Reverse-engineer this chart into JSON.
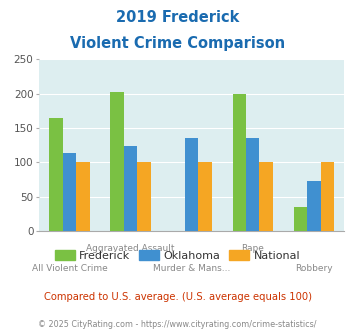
{
  "title_line1": "2019 Frederick",
  "title_line2": "Violent Crime Comparison",
  "categories": [
    "All Violent Crime",
    "Aggravated Assault",
    "Murder & Mans...",
    "Rape",
    "Robbery"
  ],
  "tick_top": [
    "",
    "Aggravated Assault",
    "",
    "Rape",
    ""
  ],
  "tick_bot": [
    "All Violent Crime",
    "",
    "Murder & Mans...",
    "",
    "Robbery"
  ],
  "series": {
    "Frederick": [
      165,
      203,
      0,
      200,
      35
    ],
    "Oklahoma": [
      113,
      124,
      135,
      135,
      73
    ],
    "National": [
      100,
      100,
      100,
      100,
      100
    ]
  },
  "colors": {
    "Frederick": "#7ac143",
    "Oklahoma": "#4090d0",
    "National": "#f5a623"
  },
  "ylim": [
    0,
    250
  ],
  "yticks": [
    0,
    50,
    100,
    150,
    200,
    250
  ],
  "bg_color": "#ddeef0",
  "title_color": "#1a6bb0",
  "note_text": "Compared to U.S. average. (U.S. average equals 100)",
  "note_color": "#cc3300",
  "footer_text": "© 2025 CityRating.com - https://www.cityrating.com/crime-statistics/",
  "footer_color": "#888888",
  "bar_width": 0.22
}
